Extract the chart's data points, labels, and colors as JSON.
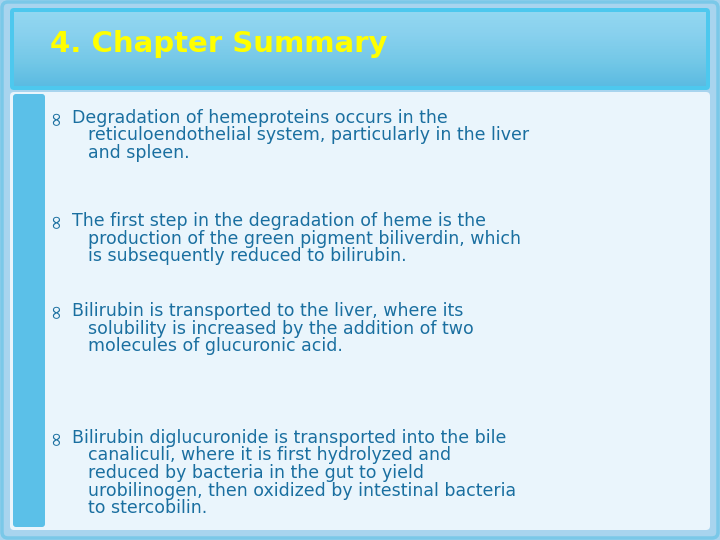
{
  "title": "4. Chapter Summary",
  "title_color": "#FFFF00",
  "outer_bg": "#A8D4EE",
  "inner_bg": "#EAF5FC",
  "title_bg": "#4DC8EE",
  "left_bar_color": "#5BC0E8",
  "text_color": "#1A6FA0",
  "bullet_symbol": "∞",
  "bullets": [
    [
      "Degradation of hemeproteins occurs in the reticuloendothelial system, particularly in the liver and spleen."
    ],
    [
      "The first step in the degradation of heme is the production of the green pigment biliverdin, which is subsequently reduced to bilirubin."
    ],
    [
      "Bilirubin is transported to the liver, where its solubility is increased by the addition of two molecules of glucuronic acid."
    ],
    [
      "Bilirubin diglucuronide is transported into the bile canaliculi, where it is first hydrolyzed and reduced by bacteria in the gut to yield urobilinogen, then oxidized by intestinal bacteria to stercobilin."
    ]
  ],
  "fig_width": 7.2,
  "fig_height": 5.4,
  "dpi": 100
}
